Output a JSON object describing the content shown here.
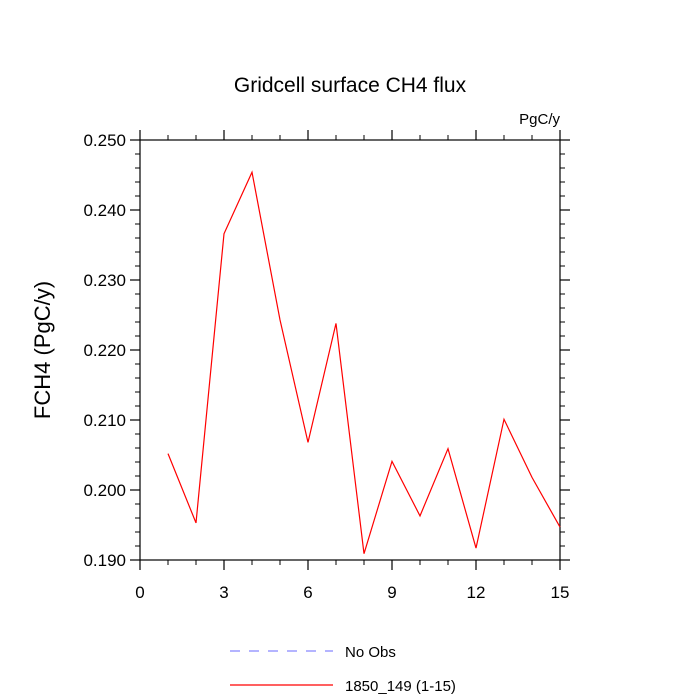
{
  "chart_data": {
    "type": "line",
    "title": "Gridcell surface CH4 flux",
    "units": "PgC/y",
    "ylabel": "FCH4  (PgC/y)",
    "xlabel": "",
    "xlim": [
      0,
      15
    ],
    "ylim": [
      0.19,
      0.25
    ],
    "xticks": [
      0,
      3,
      6,
      9,
      12,
      15
    ],
    "xtick_labels": [
      "0",
      "3",
      "6",
      "9",
      "12",
      "15"
    ],
    "yticks": [
      0.19,
      0.2,
      0.21,
      0.22,
      0.23,
      0.24,
      0.25
    ],
    "ytick_labels": [
      "0.190",
      "0.200",
      "0.210",
      "0.220",
      "0.230",
      "0.240",
      "0.250"
    ],
    "grid": false,
    "legend_position": "bottom-center",
    "series": [
      {
        "name": "1850_149 (1-15)",
        "color": "#ff0000",
        "dash": "solid",
        "x": [
          1,
          2,
          3,
          4,
          5,
          6,
          7,
          8,
          9,
          10,
          11,
          12,
          13,
          14,
          15
        ],
        "y": [
          0.2052,
          0.1953,
          0.2366,
          0.2454,
          0.2243,
          0.2068,
          0.2238,
          0.1909,
          0.2041,
          0.1963,
          0.2059,
          0.1917,
          0.2101,
          0.2018,
          0.1947
        ]
      }
    ],
    "legend": [
      {
        "label": "No Obs",
        "color": "#8888ff",
        "dash": "dashed"
      },
      {
        "label": "1850_149 (1-15)",
        "color": "#ff0000",
        "dash": "solid"
      }
    ]
  }
}
